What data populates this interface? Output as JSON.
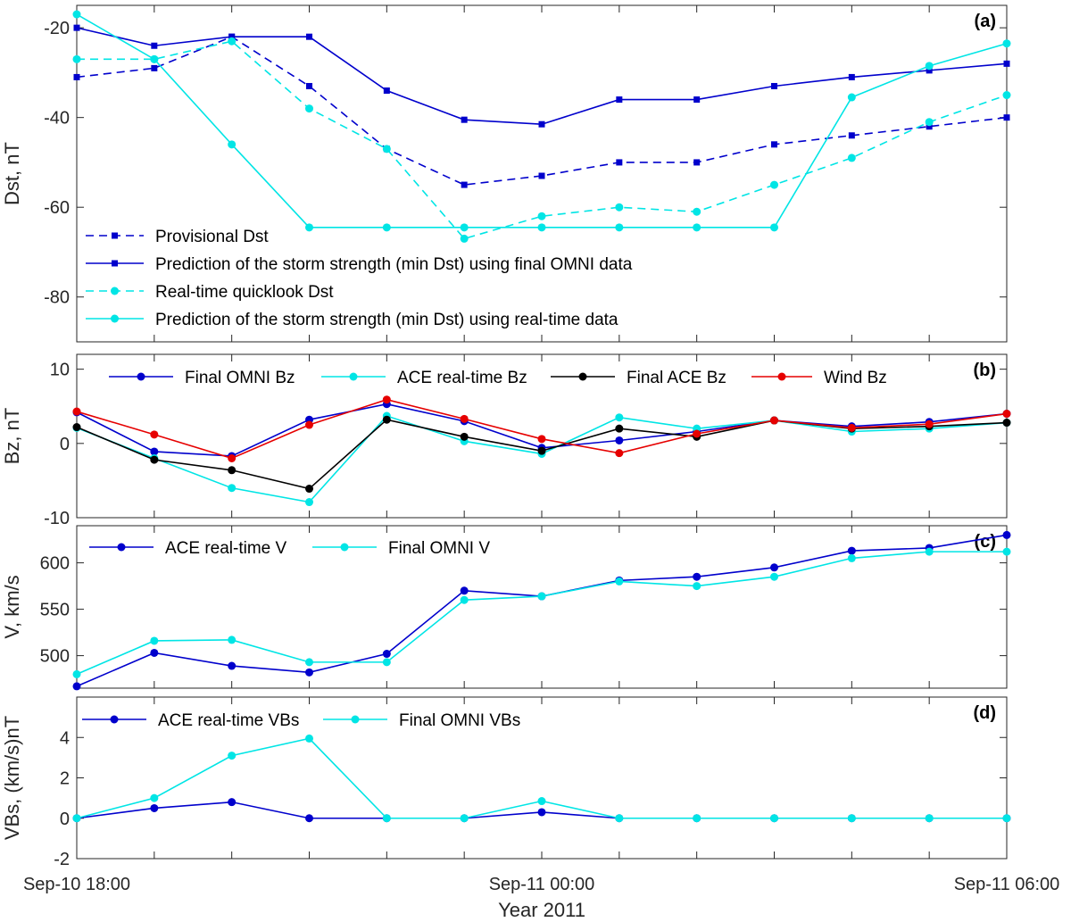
{
  "figure": {
    "xlabel": "Year 2011",
    "xticks": [
      "Sep-10 18:00",
      "Sep-11 00:00",
      "Sep-11 06:00"
    ]
  },
  "colors": {
    "blue": "#0000cc",
    "cyan": "#00e5e5",
    "black": "#000000",
    "red": "#e60000"
  },
  "chart_data": [
    {
      "type": "line",
      "panel_tag": "(a)",
      "ylabel": "Dst, nT",
      "ylim": [
        -90,
        -15
      ],
      "yticks": [
        -20,
        -40,
        -60,
        -80
      ],
      "x": [
        0,
        1,
        2,
        3,
        4,
        5,
        6,
        7,
        8,
        9,
        10,
        11,
        12
      ],
      "legend_position": "bottom-left",
      "series": [
        {
          "name": "Provisional Dst",
          "color": "#0000cc",
          "dash": true,
          "marker": "square",
          "values": [
            -31,
            -29,
            -22,
            -33,
            -47,
            -55,
            -53,
            -50,
            -50,
            -46,
            -44,
            -42,
            -40
          ]
        },
        {
          "name": "Prediction of the storm strength (min Dst) using final OMNI data",
          "color": "#0000cc",
          "dash": false,
          "marker": "square",
          "values": [
            -20,
            -24,
            -22,
            -22,
            -34,
            -40.5,
            -41.5,
            -36,
            -36,
            -33,
            -31,
            -29.5,
            -28
          ]
        },
        {
          "name": "Real-time quicklook Dst",
          "color": "#00e5e5",
          "dash": true,
          "marker": "circle",
          "values": [
            -27,
            -27,
            -23,
            -38,
            -47,
            -67,
            -62,
            -60,
            -61,
            -55,
            -49,
            -41,
            -35
          ]
        },
        {
          "name": "Prediction of the storm strength (min Dst) using real-time data",
          "color": "#00e5e5",
          "dash": false,
          "marker": "circle",
          "values": [
            -17,
            -27,
            -46,
            -64.5,
            -64.5,
            -64.5,
            -64.5,
            -64.5,
            -64.5,
            -64.5,
            -35.5,
            -28.5,
            -23.5
          ]
        }
      ]
    },
    {
      "type": "line",
      "panel_tag": "(b)",
      "ylabel": "Bz, nT",
      "ylim": [
        -10,
        12
      ],
      "yticks": [
        10,
        0,
        -10
      ],
      "x": [
        0,
        1,
        2,
        3,
        4,
        5,
        6,
        7,
        8,
        9,
        10,
        11,
        12
      ],
      "legend_position": "top",
      "series": [
        {
          "name": "Final OMNI Bz",
          "color": "#0000cc",
          "values": [
            4.2,
            -1.1,
            -1.7,
            3.2,
            5.3,
            3.0,
            -0.6,
            0.4,
            1.6,
            3.1,
            2.3,
            2.9,
            4.0
          ]
        },
        {
          "name": "ACE real-time Bz",
          "color": "#00e5e5",
          "values": [
            2.1,
            -2.0,
            -6.0,
            -7.9,
            3.7,
            0.3,
            -1.4,
            3.5,
            2.0,
            3.1,
            1.6,
            2.0,
            2.8
          ]
        },
        {
          "name": "Final ACE Bz",
          "color": "#000000",
          "values": [
            2.2,
            -2.2,
            -3.6,
            -6.1,
            3.2,
            0.9,
            -1.0,
            2.0,
            0.9,
            3.1,
            2.0,
            2.3,
            2.8
          ]
        },
        {
          "name": "Wind Bz",
          "color": "#e60000",
          "values": [
            4.3,
            1.2,
            -2.0,
            2.5,
            5.9,
            3.3,
            0.6,
            -1.3,
            1.3,
            3.1,
            2.1,
            2.6,
            4.0
          ]
        }
      ]
    },
    {
      "type": "line",
      "panel_tag": "(c)",
      "ylabel": "V, km/s",
      "ylim": [
        465,
        640
      ],
      "yticks": [
        600,
        550,
        500
      ],
      "x": [
        0,
        1,
        2,
        3,
        4,
        5,
        6,
        7,
        8,
        9,
        10,
        11,
        12
      ],
      "legend_position": "top-left",
      "series": [
        {
          "name": "ACE real-time V",
          "color": "#0000cc",
          "values": [
            467,
            503,
            489,
            482,
            502,
            570,
            564,
            581,
            585,
            595,
            613,
            616,
            630
          ]
        },
        {
          "name": "Final OMNI V",
          "color": "#00e5e5",
          "values": [
            480,
            516,
            517,
            493,
            493,
            560,
            564,
            580,
            575,
            585,
            605,
            612,
            612
          ]
        }
      ]
    },
    {
      "type": "line",
      "panel_tag": "(d)",
      "ylabel": "VBs, (km/s)nT",
      "ylim": [
        -2,
        6
      ],
      "yticks": [
        4,
        2,
        0,
        -2
      ],
      "x": [
        0,
        1,
        2,
        3,
        4,
        5,
        6,
        7,
        8,
        9,
        10,
        11,
        12
      ],
      "legend_position": "top-left",
      "series": [
        {
          "name": "ACE real-time VBs",
          "color": "#0000cc",
          "values": [
            0,
            0.5,
            0.8,
            0,
            0,
            0,
            0.3,
            0,
            0,
            0,
            0,
            0,
            0
          ]
        },
        {
          "name": "Final OMNI VBs",
          "color": "#00e5e5",
          "values": [
            0,
            1.0,
            3.1,
            3.95,
            0,
            0,
            0.85,
            0,
            0,
            0,
            0,
            0,
            0
          ]
        }
      ]
    }
  ]
}
